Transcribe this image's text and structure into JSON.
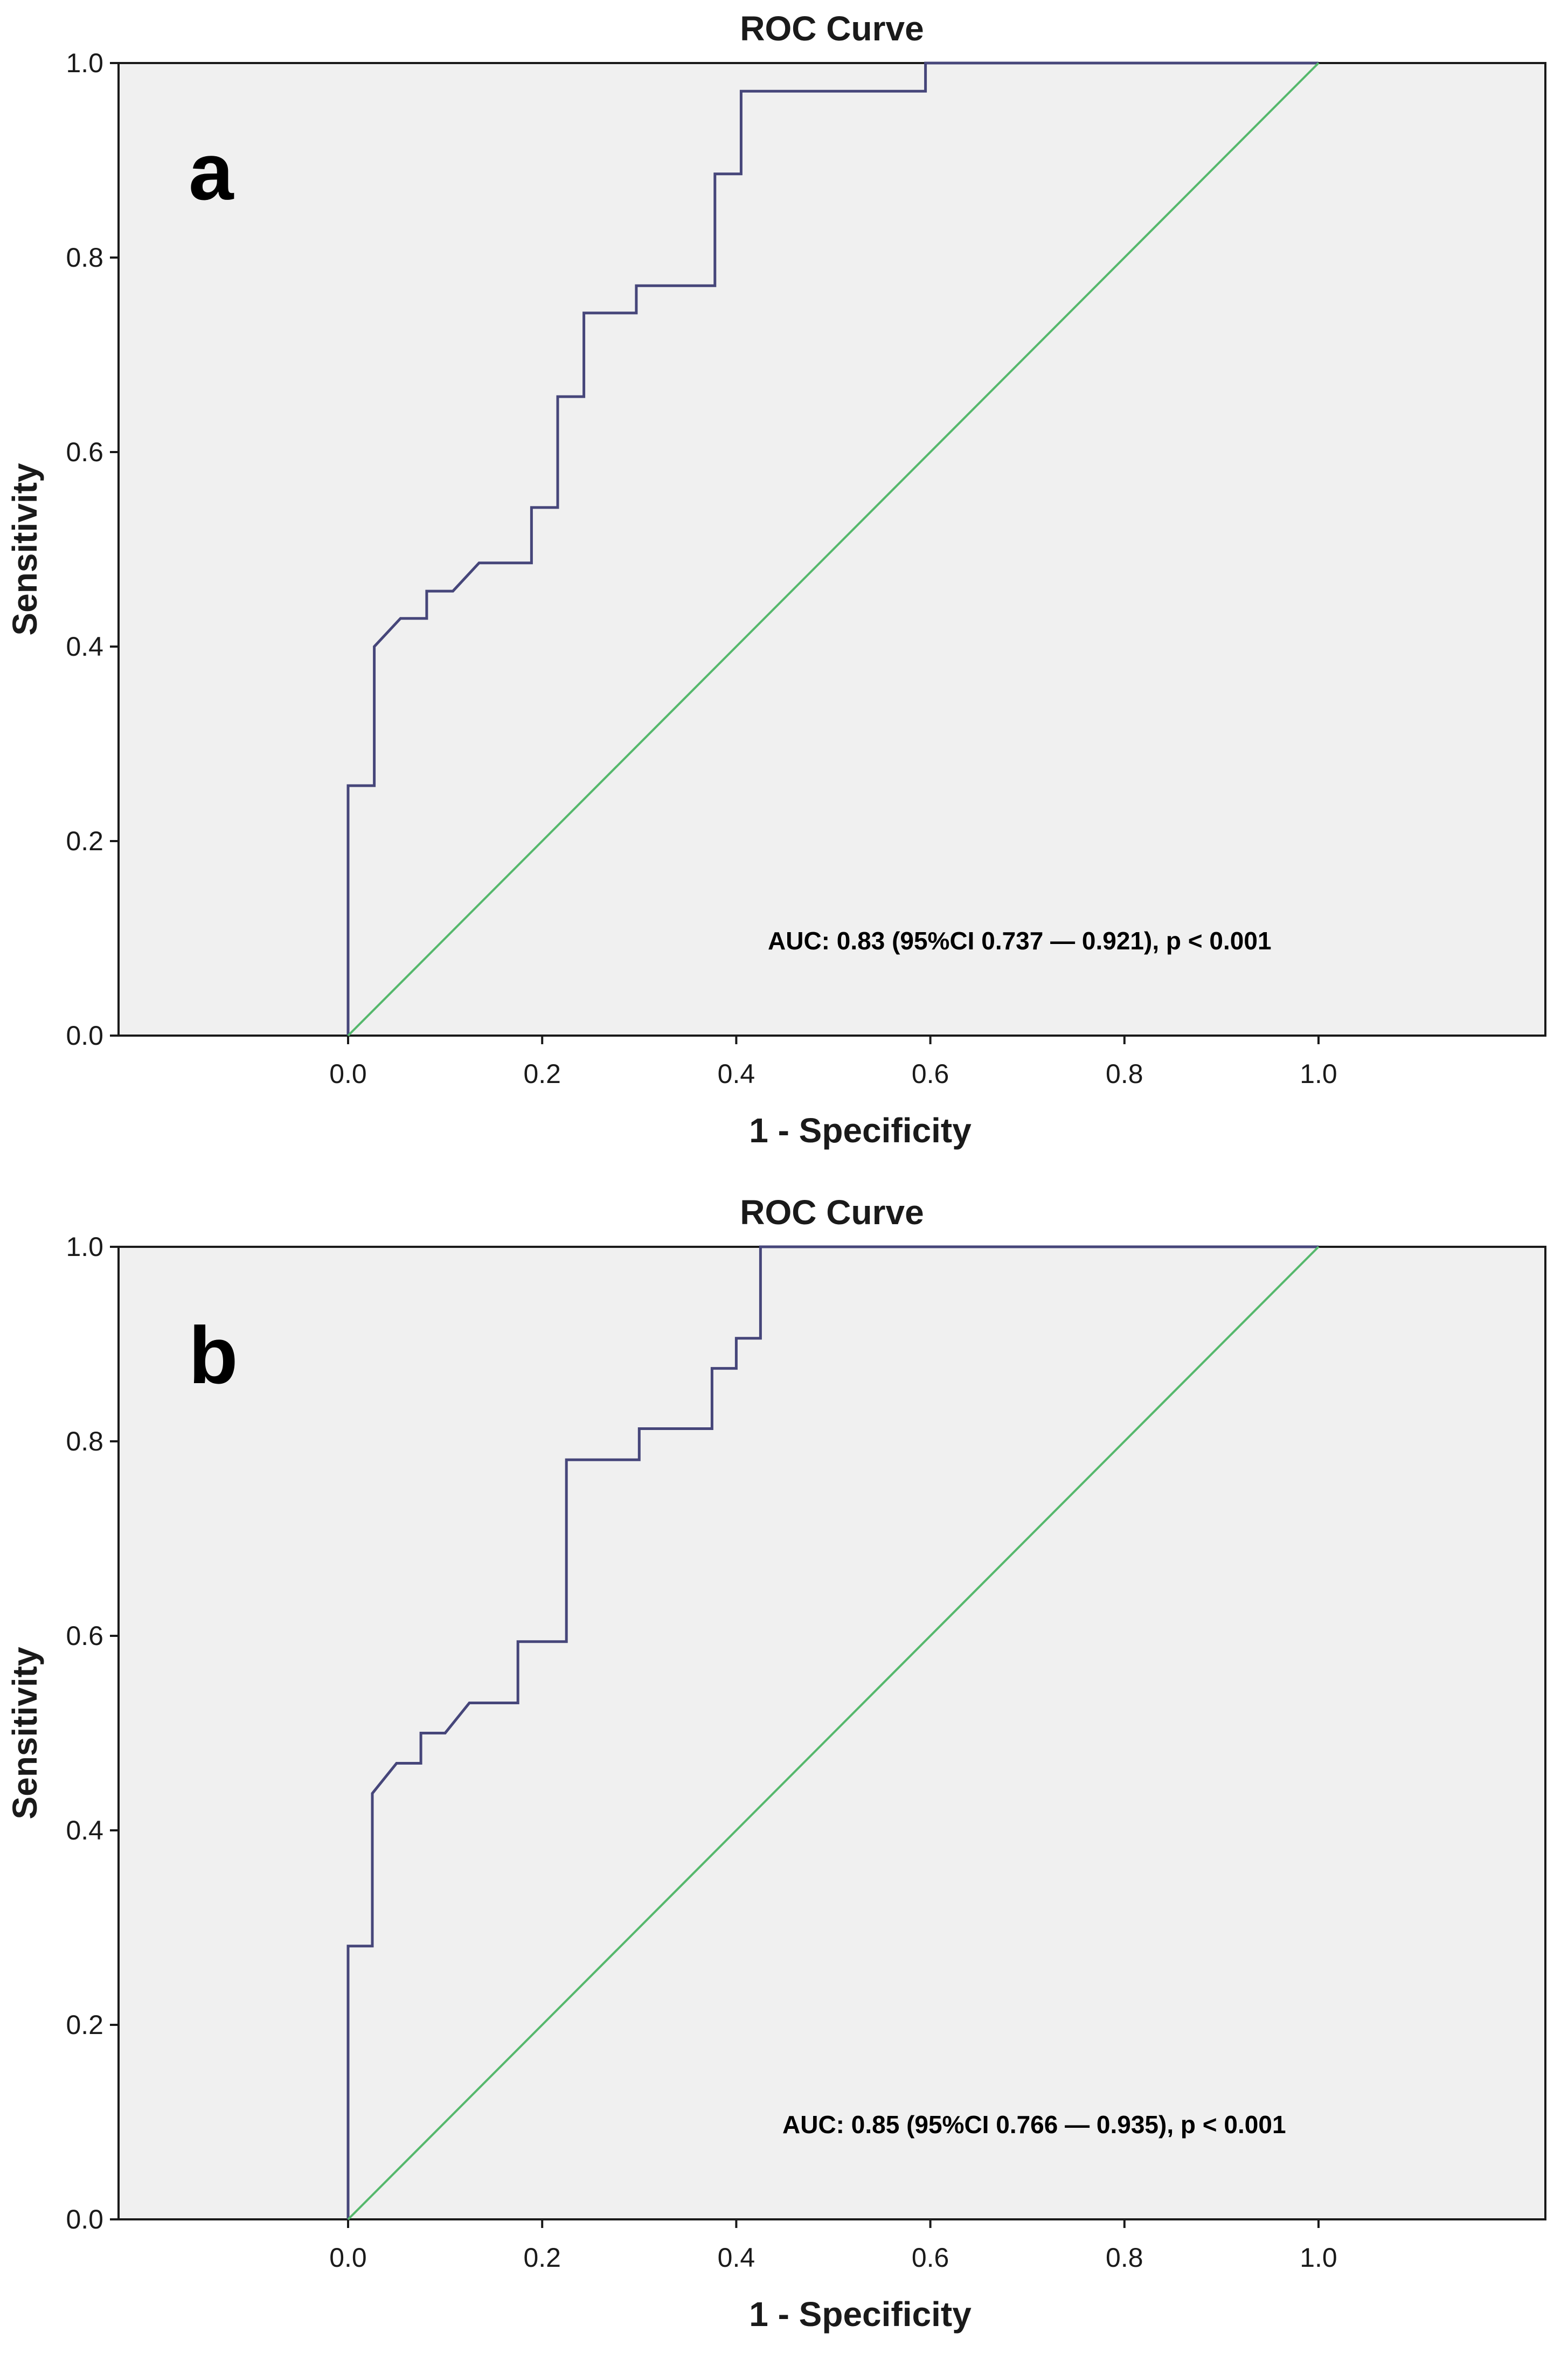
{
  "colors": {
    "plot_background": "#f0f0f0",
    "roc_line": "#46467a",
    "reference_line": "#55b86c",
    "axis_color": "#1a1a1a"
  },
  "chart_data": [
    {
      "type": "line",
      "panel_label": "a",
      "title": "ROC Curve",
      "xlabel": "1 - Specificity",
      "ylabel": "Sensitivity",
      "xlim": [
        0.0,
        1.0
      ],
      "ylim": [
        0.0,
        1.0
      ],
      "x_ticks": [
        "0.0",
        "0.2",
        "0.4",
        "0.6",
        "0.8",
        "1.0"
      ],
      "y_ticks": [
        "0.0",
        "0.2",
        "0.4",
        "0.6",
        "0.8",
        "1.0"
      ],
      "grid": false,
      "annotation": "AUC: 0.83 (95%CI 0.737 — 0.921), p < 0.001",
      "series": [
        {
          "role": "roc",
          "x": [
            0.0,
            0.0,
            0.027,
            0.027,
            0.054,
            0.081,
            0.081,
            0.108,
            0.135,
            0.189,
            0.189,
            0.216,
            0.216,
            0.243,
            0.243,
            0.297,
            0.297,
            0.378,
            0.378,
            0.405,
            0.405,
            0.595,
            0.595,
            1.0
          ],
          "y": [
            0.0,
            0.257,
            0.257,
            0.4,
            0.429,
            0.429,
            0.457,
            0.457,
            0.486,
            0.486,
            0.543,
            0.543,
            0.657,
            0.657,
            0.743,
            0.743,
            0.771,
            0.771,
            0.886,
            0.886,
            0.971,
            0.971,
            1.0,
            1.0
          ]
        },
        {
          "role": "reference",
          "x": [
            0.0,
            1.0
          ],
          "y": [
            0.0,
            1.0
          ]
        }
      ]
    },
    {
      "type": "line",
      "panel_label": "b",
      "title": "ROC Curve",
      "xlabel": "1 - Specificity",
      "ylabel": "Sensitivity",
      "xlim": [
        0.0,
        1.0
      ],
      "ylim": [
        0.0,
        1.0
      ],
      "x_ticks": [
        "0.0",
        "0.2",
        "0.4",
        "0.6",
        "0.8",
        "1.0"
      ],
      "y_ticks": [
        "0.0",
        "0.2",
        "0.4",
        "0.6",
        "0.8",
        "1.0"
      ],
      "grid": false,
      "annotation": "AUC: 0.85 (95%CI 0.766 — 0.935), p < 0.001",
      "series": [
        {
          "role": "roc",
          "x": [
            0.0,
            0.0,
            0.025,
            0.025,
            0.05,
            0.075,
            0.075,
            0.1,
            0.125,
            0.175,
            0.175,
            0.225,
            0.225,
            0.3,
            0.3,
            0.375,
            0.375,
            0.4,
            0.4,
            0.425,
            0.425,
            1.0
          ],
          "y": [
            0.0,
            0.281,
            0.281,
            0.438,
            0.469,
            0.469,
            0.5,
            0.5,
            0.531,
            0.531,
            0.594,
            0.594,
            0.781,
            0.781,
            0.813,
            0.813,
            0.875,
            0.875,
            0.906,
            0.906,
            1.0,
            1.0
          ]
        },
        {
          "role": "reference",
          "x": [
            0.0,
            1.0
          ],
          "y": [
            0.0,
            1.0
          ]
        }
      ]
    }
  ]
}
